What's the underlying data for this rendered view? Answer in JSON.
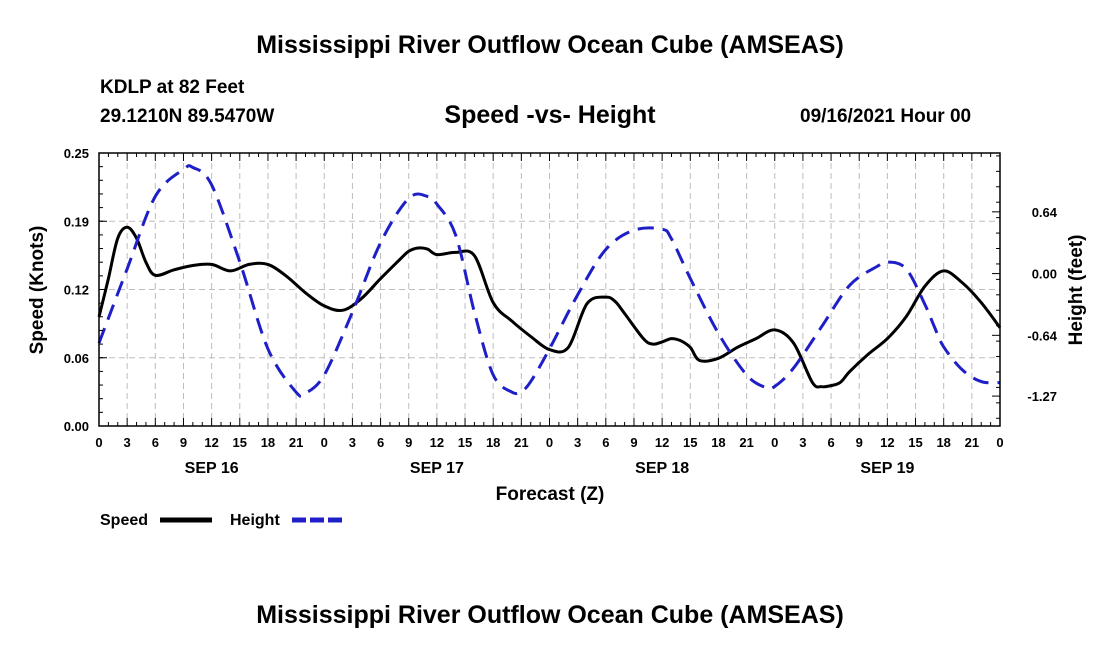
{
  "header": {
    "title": "Mississippi River Outflow Ocean Cube (AMSEAS)",
    "station": "KDLP at 82 Feet",
    "coords": "29.1210N  89.5470W",
    "subtitle": "Speed -vs- Height",
    "run_time": "09/16/2021 Hour 00"
  },
  "footer": {
    "title": "Mississippi River Outflow Ocean Cube (AMSEAS)"
  },
  "chart_data": {
    "type": "line",
    "title": "Speed -vs- Height",
    "xlabel": "Forecast (Z)",
    "ylabel_left": "Speed (Knots)",
    "ylabel_right": "Height (feet)",
    "x_unit": "hours from 09/16/2021 00Z",
    "xlim": [
      0,
      96
    ],
    "ylim_left": [
      0,
      0.25
    ],
    "ylim_right": [
      -1.58,
      1.25
    ],
    "grid": true,
    "x_tick_labels": [
      "0",
      "3",
      "6",
      "9",
      "12",
      "15",
      "18",
      "21",
      "0",
      "3",
      "6",
      "9",
      "12",
      "15",
      "18",
      "21",
      "0",
      "3",
      "6",
      "9",
      "12",
      "15",
      "18",
      "21",
      "0",
      "3",
      "6",
      "9",
      "12",
      "15",
      "18",
      "21",
      "0"
    ],
    "date_labels": [
      {
        "hour": 12,
        "label": "SEP 16"
      },
      {
        "hour": 36,
        "label": "SEP 17"
      },
      {
        "hour": 60,
        "label": "SEP 18"
      },
      {
        "hour": 84,
        "label": "SEP 19"
      }
    ],
    "y_left_ticks": [
      "0.00",
      "0.06",
      "0.12",
      "0.19",
      "0.25"
    ],
    "y_left_tick_values": [
      0,
      0.0625,
      0.125,
      0.1875,
      0.25
    ],
    "y_right_ticks": [
      "0.64",
      "0.00",
      "-0.64",
      "-1.27"
    ],
    "y_right_tick_values": [
      0.64,
      0.0,
      -0.64,
      -1.27
    ],
    "series": [
      {
        "name": "Speed",
        "axis": "left",
        "color": "#000000",
        "style": "solid",
        "x": [
          0,
          1,
          2,
          3,
          4,
          5,
          6,
          8,
          10,
          12,
          14,
          16,
          18,
          20,
          22,
          24,
          26,
          28,
          30,
          32,
          33,
          34,
          35,
          36,
          38,
          40,
          42,
          44,
          46,
          48,
          50,
          52,
          54,
          55,
          56,
          58,
          59,
          60,
          61,
          62,
          63,
          64,
          66,
          68,
          70,
          72,
          74,
          76,
          77,
          78,
          79,
          80,
          82,
          84,
          86,
          88,
          90,
          92,
          94,
          96
        ],
        "values": [
          0.1,
          0.135,
          0.172,
          0.182,
          0.172,
          0.15,
          0.138,
          0.143,
          0.147,
          0.148,
          0.142,
          0.148,
          0.148,
          0.137,
          0.122,
          0.11,
          0.106,
          0.117,
          0.135,
          0.152,
          0.16,
          0.163,
          0.162,
          0.157,
          0.159,
          0.156,
          0.113,
          0.096,
          0.082,
          0.07,
          0.072,
          0.112,
          0.118,
          0.114,
          0.103,
          0.08,
          0.075,
          0.077,
          0.08,
          0.078,
          0.072,
          0.06,
          0.062,
          0.072,
          0.08,
          0.088,
          0.076,
          0.04,
          0.036,
          0.037,
          0.04,
          0.05,
          0.066,
          0.08,
          0.1,
          0.128,
          0.142,
          0.131,
          0.113,
          0.09
        ]
      },
      {
        "name": "Height",
        "axis": "right",
        "color": "#1f1fc8",
        "style": "dashed",
        "x": [
          0,
          3,
          6,
          9,
          10,
          12,
          15,
          18,
          21,
          22,
          24,
          27,
          30,
          33,
          35,
          36,
          38,
          40,
          42,
          44,
          45,
          46,
          48,
          51,
          54,
          57,
          60,
          61,
          63,
          66,
          69,
          71,
          72,
          74,
          77,
          80,
          83,
          84,
          86,
          88,
          89,
          90,
          92,
          94,
          96
        ],
        "values": [
          -0.72,
          0.05,
          0.8,
          1.08,
          1.1,
          0.92,
          0.12,
          -0.78,
          -1.23,
          -1.24,
          -1.05,
          -0.4,
          0.32,
          0.78,
          0.8,
          0.72,
          0.4,
          -0.4,
          -1.05,
          -1.23,
          -1.22,
          -1.12,
          -0.78,
          -0.22,
          0.25,
          0.45,
          0.46,
          0.36,
          -0.05,
          -0.62,
          -1.05,
          -1.18,
          -1.17,
          -0.98,
          -0.55,
          -0.12,
          0.08,
          0.12,
          0.05,
          -0.32,
          -0.55,
          -0.76,
          -1.0,
          -1.12,
          -1.13
        ]
      }
    ],
    "legend": {
      "position": "bottom-left",
      "entries": [
        "Speed",
        "Height"
      ]
    }
  }
}
